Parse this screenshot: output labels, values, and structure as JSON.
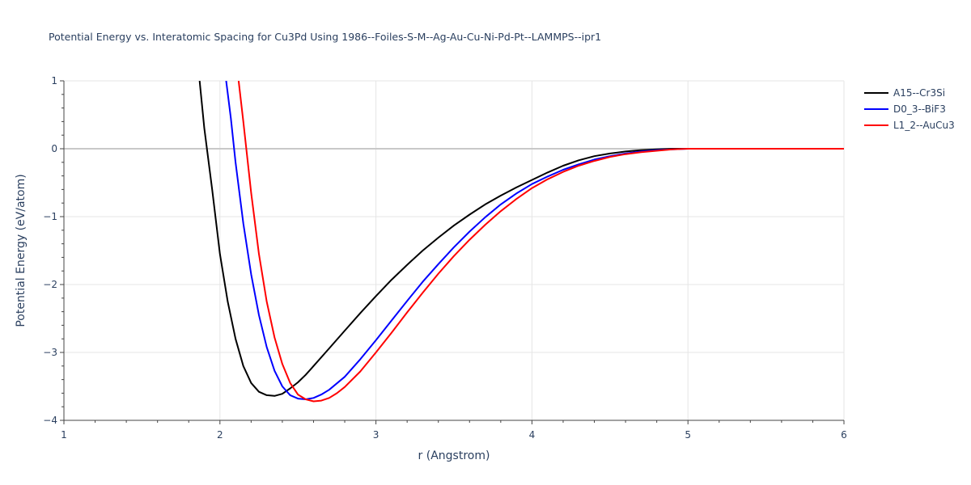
{
  "chart_data": {
    "type": "line",
    "title": "Potential Energy vs. Interatomic Spacing for Cu3Pd Using 1986--Foiles-S-M--Ag-Au-Cu-Ni-Pd-Pt--LAMMPS--ipr1",
    "xlabel": "r (Angstrom)",
    "ylabel": "Potential Energy (eV/atom)",
    "xlim": [
      1,
      6
    ],
    "ylim": [
      -4,
      1
    ],
    "x_ticks": [
      "1",
      "2",
      "3",
      "4",
      "5",
      "6"
    ],
    "y_ticks": [
      "1",
      "0",
      "−1",
      "−2",
      "−3",
      "−4"
    ],
    "grid": true,
    "legend_position": "top-right",
    "series": [
      {
        "name": "A15--Cr3Si",
        "color": "#000000",
        "x": [
          1.87,
          1.9,
          1.95,
          2.0,
          2.05,
          2.1,
          2.15,
          2.2,
          2.25,
          2.3,
          2.35,
          2.4,
          2.45,
          2.5,
          2.55,
          2.6,
          2.7,
          2.8,
          2.9,
          3.0,
          3.1,
          3.2,
          3.3,
          3.4,
          3.5,
          3.6,
          3.7,
          3.8,
          3.9,
          4.0,
          4.1,
          4.2,
          4.3,
          4.4,
          4.5,
          4.6,
          4.7,
          4.8,
          4.9,
          5.0,
          5.2,
          5.5,
          6.0
        ],
        "y": [
          1.0,
          0.3,
          -0.6,
          -1.55,
          -2.25,
          -2.8,
          -3.2,
          -3.45,
          -3.58,
          -3.63,
          -3.64,
          -3.61,
          -3.53,
          -3.44,
          -3.33,
          -3.2,
          -2.94,
          -2.68,
          -2.42,
          -2.17,
          -1.93,
          -1.71,
          -1.5,
          -1.31,
          -1.13,
          -0.97,
          -0.82,
          -0.69,
          -0.57,
          -0.46,
          -0.35,
          -0.25,
          -0.17,
          -0.11,
          -0.07,
          -0.04,
          -0.02,
          -0.01,
          0.0,
          0.0,
          0.0,
          0.0,
          0.0
        ]
      },
      {
        "name": "D0_3--BiF3",
        "color": "#0000ff",
        "x": [
          2.04,
          2.07,
          2.1,
          2.15,
          2.2,
          2.25,
          2.3,
          2.35,
          2.4,
          2.45,
          2.5,
          2.55,
          2.6,
          2.65,
          2.7,
          2.8,
          2.9,
          3.0,
          3.1,
          3.2,
          3.3,
          3.4,
          3.5,
          3.6,
          3.7,
          3.8,
          3.9,
          4.0,
          4.1,
          4.2,
          4.3,
          4.4,
          4.5,
          4.6,
          4.7,
          4.8,
          4.9,
          5.0,
          5.2,
          5.5,
          6.0
        ],
        "y": [
          1.0,
          0.45,
          -0.2,
          -1.1,
          -1.85,
          -2.45,
          -2.92,
          -3.27,
          -3.5,
          -3.63,
          -3.68,
          -3.69,
          -3.67,
          -3.62,
          -3.55,
          -3.36,
          -3.1,
          -2.82,
          -2.53,
          -2.24,
          -1.96,
          -1.7,
          -1.45,
          -1.22,
          -1.01,
          -0.82,
          -0.66,
          -0.52,
          -0.41,
          -0.31,
          -0.23,
          -0.16,
          -0.11,
          -0.07,
          -0.04,
          -0.02,
          -0.01,
          0.0,
          0.0,
          0.0,
          0.0
        ]
      },
      {
        "name": "L1_2--AuCu3",
        "color": "#ff0000",
        "x": [
          2.12,
          2.15,
          2.2,
          2.25,
          2.3,
          2.35,
          2.4,
          2.45,
          2.5,
          2.55,
          2.6,
          2.65,
          2.7,
          2.75,
          2.8,
          2.9,
          3.0,
          3.1,
          3.2,
          3.3,
          3.4,
          3.5,
          3.6,
          3.7,
          3.8,
          3.9,
          4.0,
          4.1,
          4.2,
          4.3,
          4.4,
          4.5,
          4.6,
          4.7,
          4.8,
          4.9,
          5.0,
          5.2,
          5.5,
          6.0
        ],
        "y": [
          1.0,
          0.4,
          -0.65,
          -1.55,
          -2.25,
          -2.78,
          -3.17,
          -3.45,
          -3.62,
          -3.69,
          -3.72,
          -3.71,
          -3.67,
          -3.6,
          -3.51,
          -3.28,
          -3.0,
          -2.71,
          -2.41,
          -2.12,
          -1.84,
          -1.58,
          -1.34,
          -1.12,
          -0.92,
          -0.74,
          -0.58,
          -0.45,
          -0.34,
          -0.25,
          -0.18,
          -0.12,
          -0.08,
          -0.05,
          -0.03,
          -0.01,
          0.0,
          0.0,
          0.0,
          0.0
        ]
      }
    ]
  }
}
